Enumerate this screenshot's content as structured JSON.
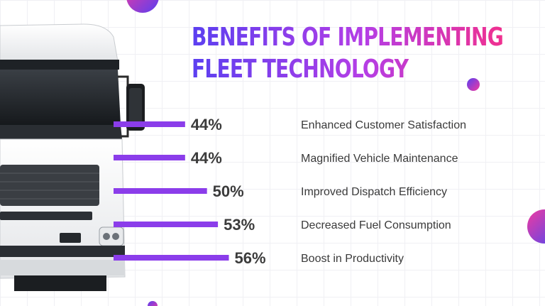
{
  "title_line1": "BENEFITS OF IMPLEMENTING",
  "title_line2": "FLEET TECHNOLOGY",
  "colors": {
    "bar": "#8b3dea",
    "title_gradient": [
      "#5b3ff0",
      "#b43ee6",
      "#f0308f"
    ],
    "text": "#3a3a3a"
  },
  "chart_data": {
    "type": "bar",
    "orientation": "horizontal",
    "categories": [
      "Enhanced Customer Satisfaction",
      "Magnified Vehicle Maintenance",
      "Improved Dispatch Efficiency",
      "Decreased Fuel Consumption",
      "Boost in Productivity"
    ],
    "values": [
      44,
      44,
      50,
      53,
      56
    ],
    "value_labels": [
      "44%",
      "44%",
      "50%",
      "53%",
      "56%"
    ],
    "unit": "%"
  }
}
